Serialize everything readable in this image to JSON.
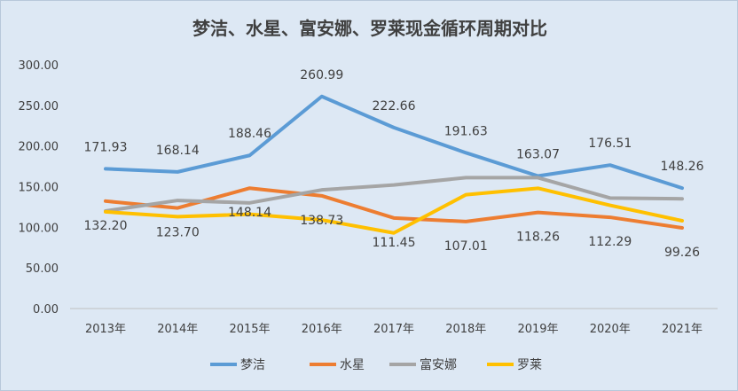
{
  "chart_data": {
    "type": "line",
    "title": "梦洁、水星、富安娜、罗莱现金循环周期对比",
    "categories": [
      "2013年",
      "2014年",
      "2015年",
      "2016年",
      "2017年",
      "2018年",
      "2019年",
      "2020年",
      "2021年"
    ],
    "ylim": [
      0,
      300
    ],
    "yticks": [
      "0.00",
      "50.00",
      "100.00",
      "150.00",
      "200.00",
      "250.00",
      "300.00"
    ],
    "grid": false,
    "legend_position": "bottom",
    "series": [
      {
        "name": "梦洁",
        "color": "#5b9bd5",
        "values": [
          171.93,
          168.14,
          188.46,
          260.99,
          222.66,
          191.63,
          163.07,
          176.51,
          148.26
        ],
        "labels": [
          "171.93",
          "168.14",
          "188.46",
          "260.99",
          "222.66",
          "191.63",
          "163.07",
          "176.51",
          "148.26"
        ]
      },
      {
        "name": "水星",
        "color": "#ed7d31",
        "values": [
          132.2,
          123.7,
          148.14,
          138.73,
          111.45,
          107.01,
          118.26,
          112.29,
          99.26
        ],
        "labels": [
          "132.20",
          "123.70",
          "148.14",
          "138.73",
          "111.45",
          "107.01",
          "118.26",
          "112.29",
          "99.26"
        ]
      },
      {
        "name": "富安娜",
        "color": "#a5a5a5",
        "values": [
          120,
          133,
          130,
          146,
          152,
          161,
          161,
          136,
          135
        ]
      },
      {
        "name": "罗莱",
        "color": "#ffc000",
        "values": [
          119,
          113,
          116,
          109,
          93,
          140,
          148,
          127,
          108
        ]
      }
    ]
  }
}
